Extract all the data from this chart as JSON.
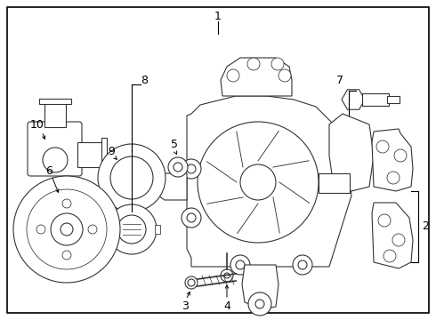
{
  "bg_color": "#ffffff",
  "line_color": "#333333",
  "lw": 0.8
}
